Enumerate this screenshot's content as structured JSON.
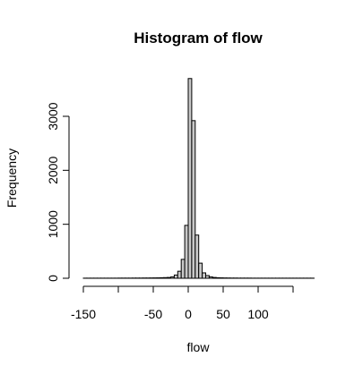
{
  "chart_data": {
    "type": "bar",
    "title": "Histogram of flow",
    "xlabel": "flow",
    "ylabel": "Frequency",
    "bin_width": 5,
    "bins": [
      {
        "x0": -150,
        "x1": -145,
        "count": 2
      },
      {
        "x0": -145,
        "x1": -140,
        "count": 2
      },
      {
        "x0": -140,
        "x1": -135,
        "count": 2
      },
      {
        "x0": -135,
        "x1": -130,
        "count": 2
      },
      {
        "x0": -130,
        "x1": -125,
        "count": 2
      },
      {
        "x0": -125,
        "x1": -120,
        "count": 2
      },
      {
        "x0": -120,
        "x1": -115,
        "count": 2
      },
      {
        "x0": -115,
        "x1": -110,
        "count": 2
      },
      {
        "x0": -110,
        "x1": -105,
        "count": 2
      },
      {
        "x0": -105,
        "x1": -100,
        "count": 2
      },
      {
        "x0": -100,
        "x1": -95,
        "count": 3
      },
      {
        "x0": -95,
        "x1": -90,
        "count": 3
      },
      {
        "x0": -90,
        "x1": -85,
        "count": 3
      },
      {
        "x0": -85,
        "x1": -80,
        "count": 3
      },
      {
        "x0": -80,
        "x1": -75,
        "count": 4
      },
      {
        "x0": -75,
        "x1": -70,
        "count": 4
      },
      {
        "x0": -70,
        "x1": -65,
        "count": 4
      },
      {
        "x0": -65,
        "x1": -60,
        "count": 5
      },
      {
        "x0": -60,
        "x1": -55,
        "count": 5
      },
      {
        "x0": -55,
        "x1": -50,
        "count": 6
      },
      {
        "x0": -50,
        "x1": -45,
        "count": 7
      },
      {
        "x0": -45,
        "x1": -40,
        "count": 8
      },
      {
        "x0": -40,
        "x1": -35,
        "count": 10
      },
      {
        "x0": -35,
        "x1": -30,
        "count": 12
      },
      {
        "x0": -30,
        "x1": -25,
        "count": 15
      },
      {
        "x0": -25,
        "x1": -20,
        "count": 25
      },
      {
        "x0": -20,
        "x1": -15,
        "count": 60
      },
      {
        "x0": -15,
        "x1": -10,
        "count": 130
      },
      {
        "x0": -10,
        "x1": -5,
        "count": 350
      },
      {
        "x0": -5,
        "x1": 0,
        "count": 980
      },
      {
        "x0": 0,
        "x1": 5,
        "count": 3700
      },
      {
        "x0": 5,
        "x1": 10,
        "count": 2920
      },
      {
        "x0": 10,
        "x1": 15,
        "count": 800
      },
      {
        "x0": 15,
        "x1": 20,
        "count": 280
      },
      {
        "x0": 20,
        "x1": 25,
        "count": 100
      },
      {
        "x0": 25,
        "x1": 30,
        "count": 50
      },
      {
        "x0": 30,
        "x1": 35,
        "count": 25
      },
      {
        "x0": 35,
        "x1": 40,
        "count": 15
      },
      {
        "x0": 40,
        "x1": 45,
        "count": 10
      },
      {
        "x0": 45,
        "x1": 50,
        "count": 8
      },
      {
        "x0": 50,
        "x1": 55,
        "count": 6
      },
      {
        "x0": 55,
        "x1": 60,
        "count": 5
      },
      {
        "x0": 60,
        "x1": 65,
        "count": 4
      },
      {
        "x0": 65,
        "x1": 70,
        "count": 4
      },
      {
        "x0": 70,
        "x1": 75,
        "count": 3
      },
      {
        "x0": 75,
        "x1": 80,
        "count": 3
      },
      {
        "x0": 80,
        "x1": 85,
        "count": 3
      },
      {
        "x0": 85,
        "x1": 90,
        "count": 3
      },
      {
        "x0": 90,
        "x1": 95,
        "count": 2
      },
      {
        "x0": 95,
        "x1": 100,
        "count": 2
      },
      {
        "x0": 100,
        "x1": 105,
        "count": 2
      },
      {
        "x0": 105,
        "x1": 110,
        "count": 2
      },
      {
        "x0": 110,
        "x1": 115,
        "count": 2
      },
      {
        "x0": 115,
        "x1": 120,
        "count": 2
      },
      {
        "x0": 120,
        "x1": 125,
        "count": 2
      },
      {
        "x0": 125,
        "x1": 130,
        "count": 2
      },
      {
        "x0": 130,
        "x1": 135,
        "count": 2
      },
      {
        "x0": 135,
        "x1": 140,
        "count": 2
      },
      {
        "x0": 140,
        "x1": 145,
        "count": 2
      },
      {
        "x0": 145,
        "x1": 150,
        "count": 2
      },
      {
        "x0": 150,
        "x1": 155,
        "count": 2
      },
      {
        "x0": 155,
        "x1": 160,
        "count": 2
      },
      {
        "x0": 160,
        "x1": 165,
        "count": 2
      },
      {
        "x0": 165,
        "x1": 170,
        "count": 2
      },
      {
        "x0": 170,
        "x1": 175,
        "count": 2
      },
      {
        "x0": 175,
        "x1": 180,
        "count": 2
      }
    ],
    "x_ticks": [
      -150,
      -100,
      -50,
      0,
      50,
      100,
      150
    ],
    "x_tick_labels": [
      "-150",
      "",
      "-50",
      "0",
      "50",
      "100",
      ""
    ],
    "y_ticks": [
      0,
      1000,
      2000,
      3000
    ],
    "y_tick_labels": [
      "0",
      "1000",
      "2000",
      "3000"
    ],
    "xlim": [
      -150,
      180
    ],
    "ylim": [
      0,
      3700
    ],
    "grid": false,
    "bar_color": "#c8c8c8",
    "outline_color": "#000000"
  }
}
